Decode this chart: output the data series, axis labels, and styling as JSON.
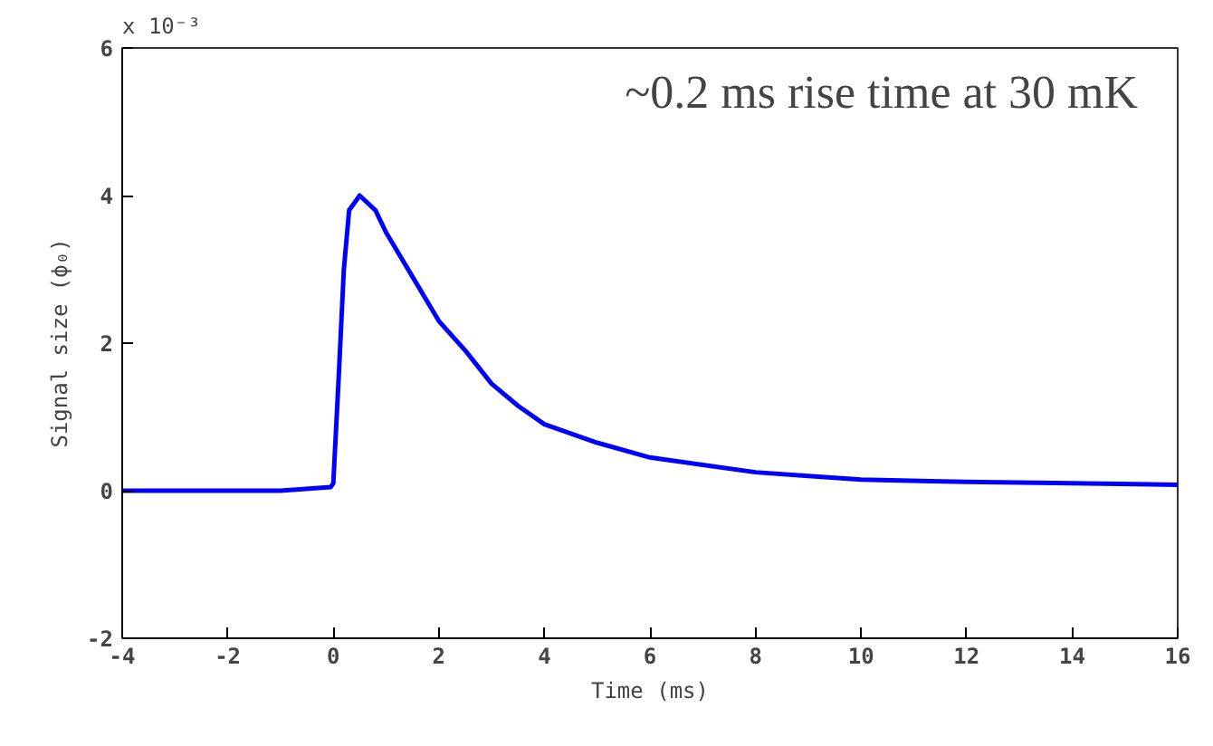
{
  "chart_data": {
    "type": "line",
    "xlabel": "Time (ms)",
    "ylabel": "Signal size (ϕ₀)",
    "annotations": [
      "x 10⁻³",
      "~0.2 ms rise time at 30 mK"
    ],
    "x": [
      -4,
      -3,
      -2,
      -1,
      -0.05,
      0,
      0.1,
      0.2,
      0.3,
      0.5,
      0.8,
      1,
      1.5,
      2,
      2.5,
      3,
      3.5,
      4,
      5,
      6,
      7,
      8,
      9,
      10,
      12,
      14,
      16
    ],
    "series": [
      {
        "color": "#0000ff",
        "values": [
          0.0,
          0.0,
          0.0,
          0.0,
          0.05,
          0.1,
          1.5,
          3.0,
          3.8,
          4.0,
          3.8,
          3.5,
          2.9,
          2.3,
          1.9,
          1.45,
          1.15,
          0.9,
          0.65,
          0.45,
          0.35,
          0.25,
          0.2,
          0.15,
          0.12,
          0.1,
          0.08
        ]
      }
    ],
    "xlim": [
      -4,
      16
    ],
    "ylim": [
      -2,
      6
    ],
    "xticks": [
      -4,
      -2,
      0,
      2,
      4,
      6,
      8,
      10,
      12,
      14,
      16
    ],
    "yticks": [
      -2,
      0,
      2,
      4,
      6
    ],
    "grid": false,
    "marker": "none",
    "line_style": "solid"
  }
}
